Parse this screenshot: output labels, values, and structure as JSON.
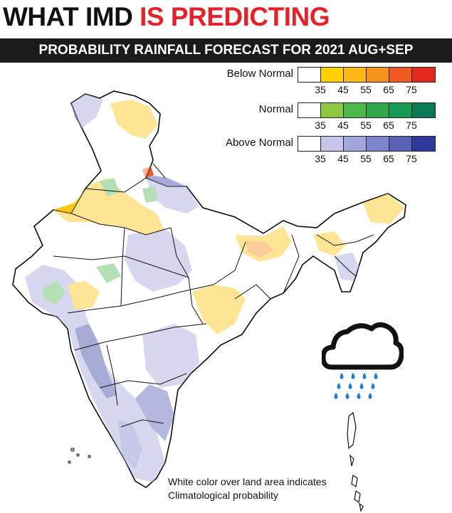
{
  "headline": {
    "part1": "WHAT IMD",
    "part2": "IS PREDICTING"
  },
  "subheading": "PROBABILITY RAINFALL FORECAST FOR 2021 AUG+SEP",
  "legend": {
    "rows": [
      {
        "label": "Below Normal",
        "colors": [
          "#ffffff",
          "#ffd000",
          "#fdb813",
          "#f7941d",
          "#f15a22",
          "#e22a1c"
        ],
        "ticks": [
          "35",
          "45",
          "55",
          "65",
          "75"
        ]
      },
      {
        "label": "Normal",
        "colors": [
          "#ffffff",
          "#8dc63f",
          "#4cb848",
          "#2ea84a",
          "#169b52",
          "#0a7a56"
        ],
        "ticks": [
          "35",
          "45",
          "55",
          "65",
          "75"
        ]
      },
      {
        "label": "Above Normal",
        "colors": [
          "#ffffff",
          "#c5c6e8",
          "#a3a6da",
          "#7f85cb",
          "#5a62b8",
          "#2d3a9a"
        ],
        "ticks": [
          "35",
          "45",
          "55",
          "65",
          "75"
        ]
      }
    ]
  },
  "map": {
    "colors": {
      "border": "#111111",
      "climatological": "#ffffff",
      "above_normal": "#a7aadc",
      "above_normal_strong": "#3d47a8",
      "below_normal": "#fdc616",
      "below_normal_strong": "#f15a22",
      "normal": "#5cb85c"
    }
  },
  "footnote": {
    "line1": "White color over land area indicates",
    "line2": "Climatological probability"
  },
  "rain_icon": {
    "name": "rain-cloud-icon",
    "cloud_color": "#111111",
    "drop_color": "#1e7fd1"
  }
}
